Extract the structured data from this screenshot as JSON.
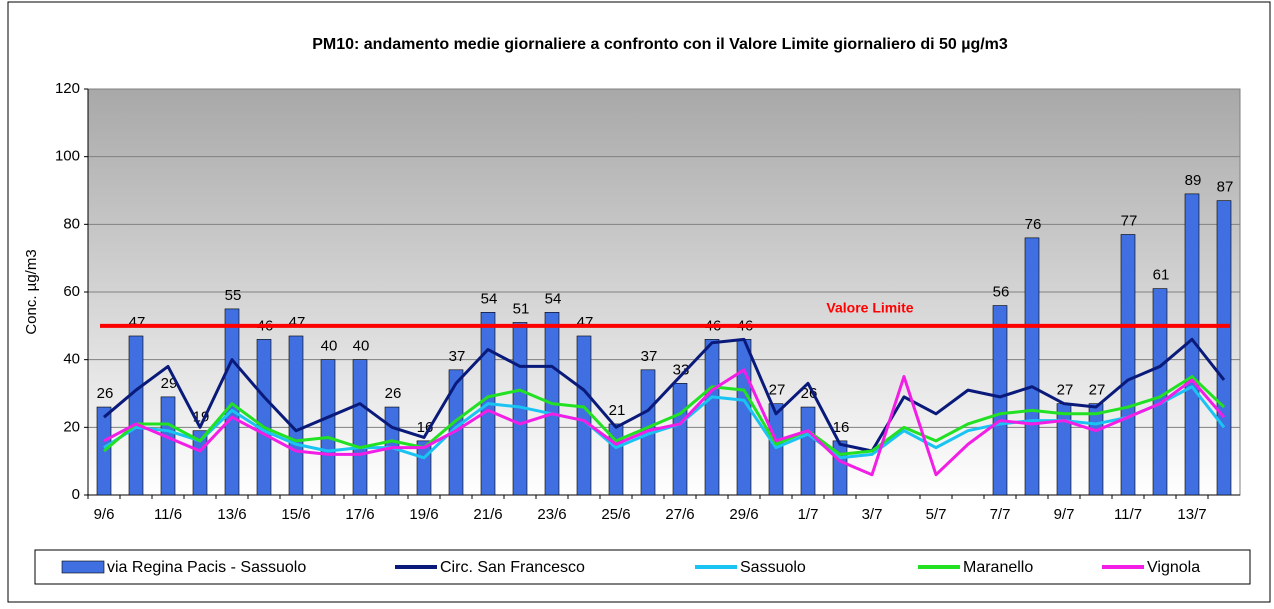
{
  "chart_data": {
    "type": "bar_line",
    "title": "PM10: andamento  medie giornaliere a confronto con il Valore Limite giornaliero di 50 µg/m3",
    "ylabel": "Conc. µg/m3",
    "categories": [
      "9/6",
      null,
      "11/6",
      null,
      "13/6",
      null,
      "15/6",
      null,
      "17/6",
      null,
      "19/6",
      null,
      "21/6",
      null,
      "23/6",
      null,
      "25/6",
      null,
      "27/6",
      null,
      "29/6",
      null,
      "1/7",
      null,
      "3/7",
      null,
      "5/7",
      null,
      "7/7",
      null,
      "9/7",
      null,
      "11/7",
      null,
      "13/7",
      null
    ],
    "series": [
      {
        "name": "via Regina Pacis - Sassuolo",
        "type": "bar",
        "color": "#3f6fe0",
        "values": [
          26,
          47,
          29,
          19,
          55,
          46,
          47,
          40,
          40,
          26,
          16,
          37,
          54,
          51,
          54,
          47,
          21,
          37,
          33,
          46,
          46,
          27,
          26,
          16,
          null,
          null,
          null,
          null,
          56,
          76,
          27,
          27,
          77,
          61,
          89,
          87
        ]
      },
      {
        "name": "Circ. San Francesco",
        "type": "line",
        "color": "#0a1a7a",
        "values": [
          23,
          31,
          38,
          20,
          40,
          29,
          19,
          23,
          27,
          20,
          17,
          33,
          43,
          38,
          38,
          31,
          20,
          25,
          35,
          45,
          46,
          24,
          33,
          15,
          13,
          29,
          24,
          31,
          29,
          32,
          27,
          26,
          34,
          38,
          46,
          34
        ]
      },
      {
        "name": "Sassuolo",
        "type": "line",
        "color": "#19c3f2",
        "values": [
          14,
          20,
          19,
          16,
          25,
          19,
          15,
          13,
          14,
          14,
          11,
          20,
          27,
          26,
          24,
          22,
          14,
          18,
          21,
          29,
          28,
          14,
          18,
          11,
          12,
          19,
          14,
          19,
          21,
          22,
          22,
          21,
          23,
          27,
          32,
          20
        ]
      },
      {
        "name": "Maranello",
        "type": "line",
        "color": "#22e022",
        "values": [
          13,
          21,
          21,
          16,
          27,
          20,
          16,
          17,
          14,
          16,
          14,
          22,
          29,
          31,
          27,
          26,
          16,
          20,
          24,
          32,
          31,
          15,
          19,
          12,
          13,
          20,
          16,
          21,
          24,
          25,
          24,
          24,
          26,
          29,
          35,
          26
        ]
      },
      {
        "name": "Vignola",
        "type": "line",
        "color": "#f21ee6",
        "values": [
          16,
          21,
          17,
          13,
          23,
          18,
          13,
          12,
          12,
          14,
          14,
          19,
          25,
          21,
          24,
          22,
          15,
          19,
          21,
          31,
          37,
          16,
          19,
          10,
          6,
          35,
          6,
          15,
          22,
          21,
          22,
          19,
          23,
          27,
          34,
          23
        ]
      }
    ],
    "limit": {
      "value": 50,
      "label": "Valore Limite",
      "color": "#ff0000"
    },
    "ylim": [
      0,
      120
    ],
    "yticks": [
      0,
      20,
      40,
      60,
      80,
      100,
      120
    ],
    "grid": true
  }
}
